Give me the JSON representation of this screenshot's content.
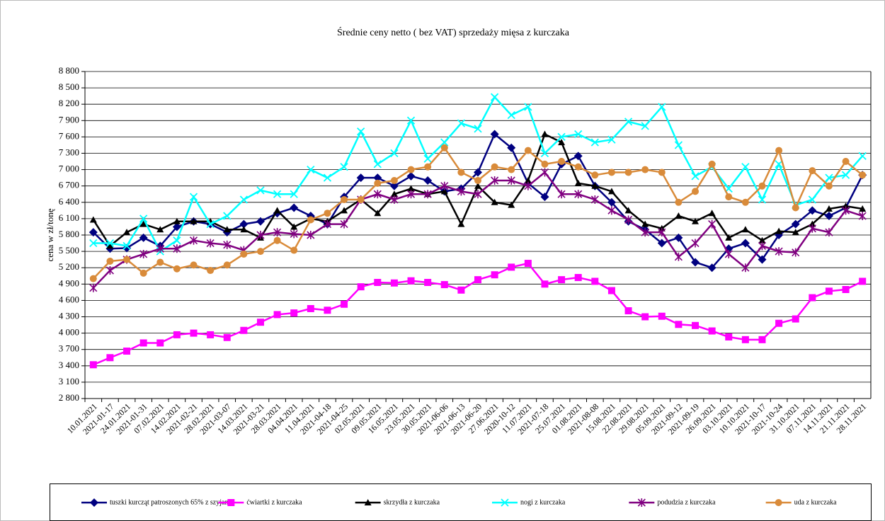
{
  "chart_data": {
    "type": "line",
    "title": "Średnie ceny netto ( bez VAT) sprzedaży mięsa z kurczaka",
    "y_label": "cena w zł/tonę",
    "categories": [
      "10.01.2021",
      "2021-01-17",
      "24.01.2021",
      "2021-01-31",
      "07.02.2021",
      "14.02.2021",
      "2021-02-21",
      "28.02.2021",
      "2021-03-07",
      "14.03.2021",
      "2021-03-21",
      "28.03.2021",
      "04.04.2021",
      "11.04.2021",
      "2021-04-18",
      "2021-04-25",
      "02.05.2021",
      "09.05.2021",
      "16.05.2021",
      "23.05.2021",
      "30.05.2021",
      "2021-06-06",
      "2021-06-13",
      "2021-06-20",
      "27.06.2021",
      "2020-10-12",
      "11.07.2021",
      "2021-07-18",
      "25.07.2021",
      "01.08.2021",
      "2021-08-08",
      "15.08.2021",
      "22.08.2021",
      "29.08.2021",
      "05.09.2021",
      "2021-09-12",
      "2021-09-19",
      "26.09.2021",
      "03.10.2021",
      "10.10.2021",
      "2021-10-17",
      "2021-10-24",
      "31.10.2021",
      "07.11.2021",
      "14.11.2021",
      "21.11.2021",
      "28.11.2021"
    ],
    "series": [
      {
        "name": "tuszki kurcząt patroszonych 65% z szyjami",
        "color": "#000080",
        "marker": "diamond",
        "values": [
          5850,
          5550,
          5560,
          5750,
          5600,
          5950,
          6050,
          6000,
          5850,
          6000,
          6050,
          6200,
          6300,
          6150,
          6000,
          6500,
          6850,
          6850,
          6700,
          6880,
          6800,
          6600,
          6650,
          6950,
          7650,
          7400,
          6750,
          6500,
          7100,
          7250,
          6700,
          6400,
          6050,
          5900,
          5650,
          5750,
          5300,
          5200,
          5550,
          5650,
          5350,
          5800,
          6000,
          6250,
          6150,
          6300,
          6900
        ]
      },
      {
        "name": "ćwiartki z kurczaka",
        "color": "#ff00ff",
        "marker": "square",
        "values": [
          3420,
          3550,
          3670,
          3820,
          3820,
          3970,
          4000,
          3970,
          3920,
          4050,
          4200,
          4340,
          4370,
          4450,
          4420,
          4530,
          4850,
          4930,
          4920,
          4960,
          4930,
          4890,
          4790,
          4980,
          5070,
          5210,
          5280,
          4900,
          4980,
          5020,
          4950,
          4780,
          4410,
          4300,
          4310,
          4160,
          4140,
          4040,
          3930,
          3880,
          3880,
          4180,
          4260,
          4650,
          4770,
          4800,
          4950
        ]
      },
      {
        "name": "skrzydła z kurczaka",
        "color": "#000000",
        "marker": "triangle",
        "values": [
          6080,
          5600,
          5850,
          6000,
          5900,
          6050,
          6050,
          6050,
          5900,
          5900,
          5750,
          6250,
          5950,
          6100,
          6050,
          6250,
          6450,
          6200,
          6550,
          6650,
          6550,
          6600,
          6000,
          6700,
          6400,
          6350,
          6800,
          7650,
          7500,
          6750,
          6700,
          6600,
          6250,
          6000,
          5920,
          6150,
          6050,
          6200,
          5750,
          5900,
          5700,
          5870,
          5850,
          6000,
          6280,
          6330,
          6280
        ]
      },
      {
        "name": "nogi z kurczaka",
        "color": "#00ffff",
        "marker": "cross",
        "values": [
          5650,
          5650,
          5600,
          6100,
          5500,
          5700,
          6500,
          6000,
          6150,
          6450,
          6620,
          6550,
          6550,
          7000,
          6850,
          7050,
          7700,
          7100,
          7300,
          7900,
          7200,
          7500,
          7850,
          7750,
          8330,
          8000,
          8150,
          7300,
          7600,
          7650,
          7500,
          7550,
          7880,
          7800,
          8150,
          7450,
          6880,
          7050,
          6650,
          7050,
          6450,
          7100,
          6350,
          6450,
          6850,
          6900,
          7250
        ]
      },
      {
        "name": "podudzia z kurczaka",
        "color": "#800080",
        "marker": "star",
        "values": [
          4830,
          5150,
          5350,
          5450,
          5550,
          5550,
          5700,
          5650,
          5620,
          5520,
          5800,
          5850,
          5820,
          5800,
          6000,
          6000,
          6450,
          6550,
          6450,
          6550,
          6550,
          6700,
          6600,
          6550,
          6800,
          6800,
          6700,
          6950,
          6550,
          6550,
          6450,
          6250,
          6080,
          5850,
          5850,
          5400,
          5650,
          6000,
          5450,
          5200,
          5600,
          5500,
          5480,
          5920,
          5850,
          6250,
          6150
        ]
      },
      {
        "name": "uda z kurczaka",
        "color": "#d98b3a",
        "marker": "circle",
        "values": [
          5000,
          5320,
          5350,
          5100,
          5300,
          5180,
          5250,
          5150,
          5250,
          5450,
          5500,
          5700,
          5520,
          6080,
          6200,
          6450,
          6450,
          6750,
          6800,
          7000,
          7050,
          7400,
          6950,
          6800,
          7050,
          7000,
          7350,
          7100,
          7150,
          7050,
          6900,
          6950,
          6950,
          7000,
          6950,
          6400,
          6600,
          7100,
          6500,
          6400,
          6700,
          7350,
          6300,
          6980,
          6700,
          7150,
          6900
        ]
      }
    ],
    "ylim": [
      2800,
      8800
    ],
    "yticks": [
      {
        "value": 2800,
        "label": "2 800"
      },
      {
        "value": 3100,
        "label": "3 100"
      },
      {
        "value": 3400,
        "label": "3 400"
      },
      {
        "value": 3700,
        "label": "3 700"
      },
      {
        "value": 4000,
        "label": "4 000"
      },
      {
        "value": 4300,
        "label": "4 300"
      },
      {
        "value": 4600,
        "label": "4 600"
      },
      {
        "value": 4900,
        "label": "4 900"
      },
      {
        "value": 5200,
        "label": "5 200"
      },
      {
        "value": 5500,
        "label": "5 500"
      },
      {
        "value": 5800,
        "label": "5 800"
      },
      {
        "value": 6100,
        "label": "6 100"
      },
      {
        "value": 6400,
        "label": "6 400"
      },
      {
        "value": 6700,
        "label": "6 700"
      },
      {
        "value": 7000,
        "label": "7 000"
      },
      {
        "value": 7300,
        "label": "7 300"
      },
      {
        "value": 7600,
        "label": "7 600"
      },
      {
        "value": 7900,
        "label": "7 900"
      },
      {
        "value": 8200,
        "label": "8 200"
      },
      {
        "value": 8500,
        "label": "8 500"
      },
      {
        "value": 8800,
        "label": "8 800"
      }
    ],
    "grid": true,
    "legend": "bottom"
  }
}
